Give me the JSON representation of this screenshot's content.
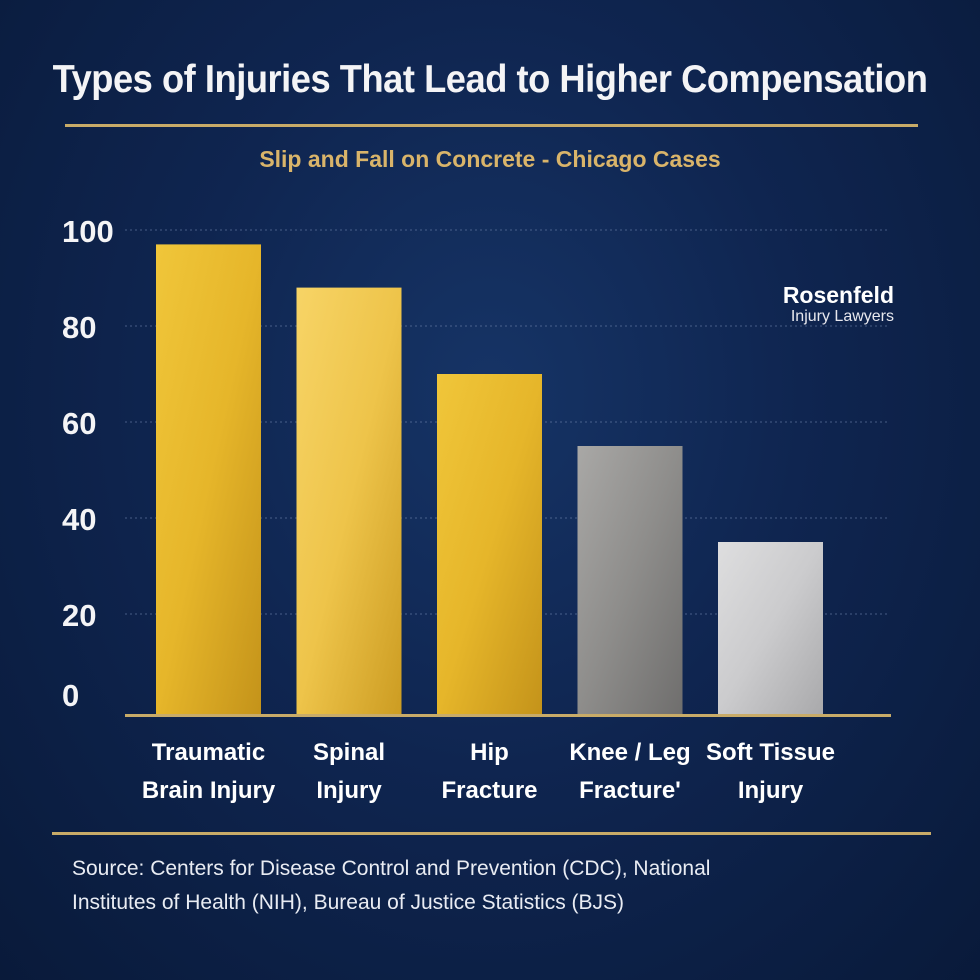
{
  "title": "Types of Injuries That Lead to Higher Compensation",
  "subtitle": "Slip and Fall on Concrete - Chicago Cases",
  "logo": {
    "name": "Rosenfeld",
    "tagline": "Injury Lawyers"
  },
  "source": {
    "line1": "Source: Centers for Disease Control and Prevention (CDC), National",
    "line2": "Institutes of Health (NIH), Bureau of Justice Statistics (BJS)"
  },
  "colors": {
    "background": "#0f2550",
    "accent_rule": "#c8ab68",
    "subtitle": "#d9b46a",
    "bar_gold": "#e2b32a",
    "bar_gray": "#8e8e90",
    "bar_silver": "#c9c9cb"
  },
  "chart_data": {
    "type": "bar",
    "title": "Types of Injuries That Lead to Higher Compensation",
    "subtitle": "Slip and Fall on Concrete - Chicago Cases",
    "categories": [
      [
        "Traumatic",
        "Brain Injury"
      ],
      [
        "Spinal",
        "Injury"
      ],
      [
        "Hip",
        "Fracture"
      ],
      [
        "Knee / Leg",
        "Fracture'"
      ],
      [
        "Soft Tissue",
        "Injury"
      ]
    ],
    "values": [
      97,
      88,
      70,
      55,
      35
    ],
    "bar_colors": [
      "gold",
      "gold-light",
      "gold",
      "gray",
      "silver"
    ],
    "yticks": [
      0,
      20,
      40,
      60,
      80,
      100
    ],
    "ylim": [
      0,
      100
    ],
    "xlabel": "",
    "ylabel": "",
    "grid": "horizontal-dotted",
    "legend": "none"
  }
}
